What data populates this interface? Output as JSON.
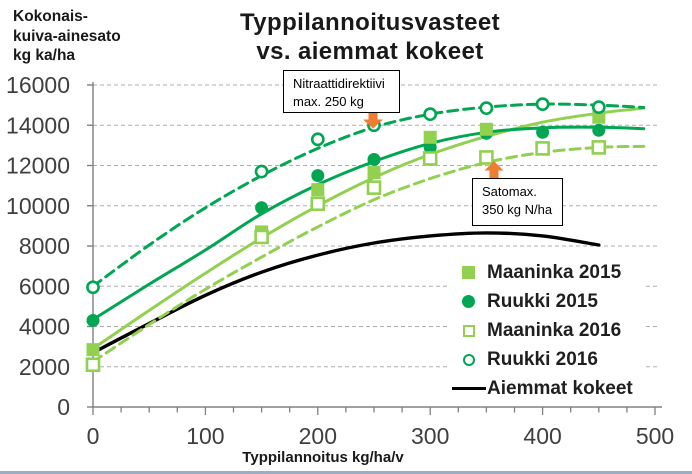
{
  "page": {
    "background": "#FFFFFF"
  },
  "header": {
    "title_line1": "Typpilannoitusvasteet",
    "title_line2": "vs. aiemmat kokeet"
  },
  "y_axis_title_lines": [
    "Kokonais-",
    "kuiva-ainesato",
    "kg ka/ha"
  ],
  "x_axis_title": "Typpilannoitus kg/ha/v",
  "annotations": {
    "nitrate": {
      "line1": "Nitraattidirektiivi",
      "line2": "max. 250 kg",
      "arrow_direction": "down",
      "arrow_color": "#ED7D31"
    },
    "satomax": {
      "line1": "Satomax.",
      "line2": "350 kg N/ha",
      "arrow_direction": "up",
      "arrow_color": "#ED7D31"
    }
  },
  "chart_data": {
    "type": "scatter",
    "title": "Typpilannoitusvasteet vs. aiemmat kokeet",
    "xlabel": "Typpilannoitus kg/ha/v",
    "ylabel": "Kokonais-kuiva-ainesato kg ka/ha",
    "xlim": [
      0,
      500
    ],
    "ylim": [
      0,
      16000
    ],
    "grid": "horizontal-dashed",
    "legend_position": "inside-lower-right",
    "x_tick_values": [
      0,
      100,
      200,
      300,
      400,
      500
    ],
    "x_tick_labels": [
      "0",
      "100",
      "200",
      "300",
      "400",
      "500"
    ],
    "x_minor_tick_step": 25,
    "y_tick_values": [
      0,
      2000,
      4000,
      6000,
      8000,
      10000,
      12000,
      14000,
      16000
    ],
    "y_tick_labels": [
      "0",
      "2000",
      "4000",
      "6000",
      "8000",
      "10000",
      "12000",
      "14000",
      "16000"
    ],
    "scatter_x": [
      0,
      150,
      200,
      250,
      300,
      350,
      400,
      450
    ],
    "trend_x": [
      0,
      50,
      100,
      150,
      200,
      250,
      300,
      350,
      400,
      450,
      490
    ],
    "series": [
      {
        "name": "Maaninka 2015",
        "marker": "filled-square",
        "line_style": "solid",
        "color": "#92D050",
        "values": [
          2850,
          8700,
          10800,
          11650,
          13400,
          13800,
          null,
          14400
        ],
        "trend_y": [
          2900,
          4800,
          6650,
          8400,
          10000,
          11400,
          12550,
          13450,
          14150,
          14600,
          14850
        ]
      },
      {
        "name": "Ruukki 2015",
        "marker": "filled-circle",
        "line_style": "solid",
        "color": "#00A651",
        "values": [
          4300,
          9900,
          11500,
          12300,
          12900,
          13600,
          13650,
          13750
        ],
        "trend_y": [
          4350,
          6100,
          7800,
          9600,
          11050,
          12200,
          13100,
          13650,
          13870,
          13900,
          13830
        ]
      },
      {
        "name": "Maaninka 2016",
        "marker": "open-square",
        "line_style": "dashed",
        "color": "#92D050",
        "values": [
          2100,
          8450,
          10100,
          10900,
          12350,
          12400,
          12850,
          12900
        ],
        "trend_y": [
          2250,
          4100,
          5850,
          7450,
          8950,
          10300,
          11350,
          12150,
          12650,
          12900,
          12950
        ]
      },
      {
        "name": "Ruukki 2016",
        "marker": "open-circle",
        "line_style": "dashed",
        "color": "#00A651",
        "values": [
          5950,
          11700,
          13300,
          14000,
          14550,
          14850,
          15050,
          14900
        ],
        "trend_y": [
          6000,
          8050,
          9900,
          11500,
          12850,
          13900,
          14550,
          14900,
          15050,
          15000,
          14880
        ]
      }
    ],
    "reference_series": {
      "name": "Aiemmat kokeet",
      "color": "#000000",
      "line_style": "solid",
      "x": [
        0,
        50,
        100,
        150,
        200,
        250,
        300,
        350,
        400,
        450
      ],
      "values": [
        2700,
        4150,
        5550,
        6700,
        7550,
        8150,
        8500,
        8650,
        8500,
        8050
      ]
    },
    "colors": {
      "light_green": "#92D050",
      "dark_green": "#00A651",
      "orange_arrow": "#ED7D31",
      "gridline": "#ADADAD",
      "axis": "#808080",
      "tick_text": "#3F3F3F"
    }
  }
}
